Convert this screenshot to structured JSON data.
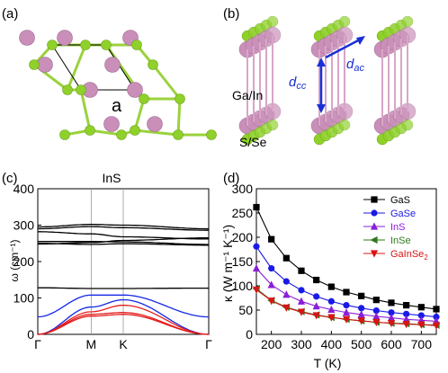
{
  "panels": {
    "a": {
      "label": "(a)",
      "lattice_label": "a"
    },
    "b": {
      "label": "(b)",
      "dcc": "d",
      "dcc_sub": "cc",
      "dac": "d",
      "dac_sub": "ac",
      "metal_label": "Ga/In",
      "chalcogen_label": "S/Se"
    },
    "c": {
      "label": "(c)",
      "title": "InS"
    },
    "d": {
      "label": "(d)"
    }
  },
  "colors": {
    "metal_atom": "#c98fb8",
    "chalcogen_atom": "#8fd12a",
    "bond_green": "#9ad23c",
    "bond_pink": "#d9a5c8",
    "annotation_blue": "#1a2fd6"
  },
  "chart_data": [
    {
      "type": "line",
      "title": "InS",
      "ylabel_symbol": "ω",
      "ylabel_unit": "(cm⁻¹)",
      "ylim": [
        0,
        400
      ],
      "yticks": [
        0,
        100,
        200,
        300,
        400
      ],
      "xticks": [
        "Γ",
        "M",
        "K",
        "Γ"
      ],
      "k_positions": [
        0,
        1,
        1.6,
        3.2
      ],
      "series_groups": [
        {
          "color": "#000000",
          "bands": [
            [
              295,
              302,
              300,
              290
            ],
            [
              290,
              296,
              293,
              286
            ],
            [
              282,
              276,
              268,
              262
            ],
            [
              255,
              255,
              254,
              247
            ],
            [
              250,
              247,
              249,
              245
            ],
            [
              248,
              252,
              258,
              265
            ],
            [
              128,
              126,
              126,
              127
            ]
          ]
        },
        {
          "color": "#1428e6",
          "bands": [
            [
              48,
              108,
              108,
              48
            ],
            [
              0,
              75,
              95,
              0
            ]
          ]
        },
        {
          "color": "#e41d1d",
          "bands": [
            [
              0,
              62,
              80,
              0
            ],
            [
              0,
              55,
              60,
              0
            ],
            [
              0,
              50,
              55,
              0
            ]
          ]
        }
      ]
    },
    {
      "type": "line",
      "xlabel": "T (K)",
      "ylabel": "κ (W m⁻¹ K⁻¹)",
      "xlim": [
        150,
        750
      ],
      "ylim": [
        0,
        300
      ],
      "xticks": [
        200,
        300,
        400,
        500,
        600,
        700
      ],
      "yticks": [
        0,
        50,
        100,
        150,
        200,
        250,
        300
      ],
      "x": [
        150,
        200,
        250,
        300,
        350,
        400,
        450,
        500,
        550,
        600,
        650,
        700,
        750
      ],
      "series": [
        {
          "name": "GaS",
          "color": "#000000",
          "marker": "square",
          "values": [
            262,
            196,
            157,
            131,
            112,
            98,
            87,
            79,
            71,
            65,
            60,
            56,
            52
          ]
        },
        {
          "name": "GaSe",
          "color": "#1a1ae6",
          "marker": "circle",
          "values": [
            181,
            136,
            109,
            91,
            78,
            68,
            60,
            54,
            49,
            45,
            42,
            39,
            36
          ]
        },
        {
          "name": "InS",
          "color": "#8a1fd6",
          "marker": "triangle-up",
          "values": [
            136,
            102,
            82,
            68,
            58,
            51,
            45,
            41,
            37,
            34,
            31,
            29,
            27
          ]
        },
        {
          "name": "InSe",
          "color": "#2e7a1e",
          "marker": "triangle-left",
          "values": [
            94,
            70,
            56,
            47,
            40,
            35,
            31,
            28,
            25,
            23,
            22,
            20,
            19
          ]
        },
        {
          "name": "GaInSe",
          "name_sub": "2",
          "color": "#d91414",
          "marker": "triangle-down",
          "values": [
            92,
            69,
            55,
            46,
            39,
            35,
            31,
            28,
            25,
            23,
            21,
            20,
            18
          ]
        }
      ],
      "legend_position": "top-right"
    }
  ]
}
